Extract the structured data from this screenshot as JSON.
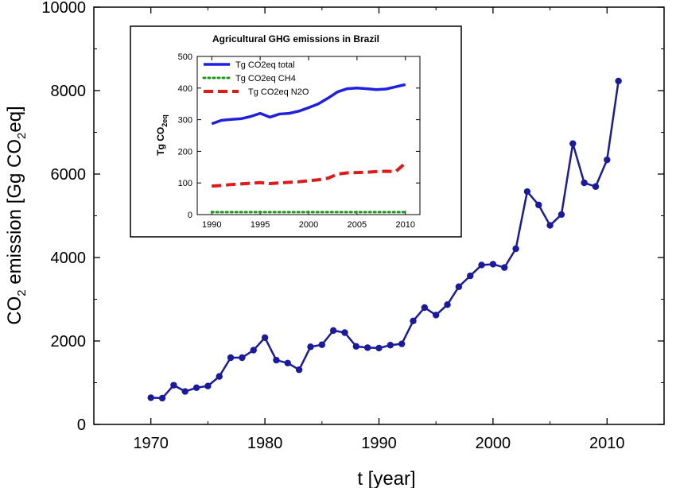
{
  "chart_data": [
    {
      "type": "line",
      "xlabel": "t [year]",
      "ylabel_parts": [
        "CO",
        "2",
        " emission [Gg CO",
        "2",
        "eq]"
      ],
      "xlim": [
        1965,
        2015
      ],
      "ylim": [
        0,
        10000
      ],
      "xticks": [
        1970,
        1980,
        1990,
        2000,
        2010
      ],
      "yticks": [
        0,
        2000,
        4000,
        6000,
        8000,
        10000
      ],
      "grid": false,
      "series": [
        {
          "color": "#1a1aa0",
          "marker": "circle",
          "x": [
            1970,
            1971,
            1972,
            1973,
            1974,
            1975,
            1976,
            1977,
            1978,
            1979,
            1980,
            1981,
            1982,
            1983,
            1984,
            1985,
            1986,
            1987,
            1988,
            1989,
            1990,
            1991,
            1992,
            1993,
            1994,
            1995,
            1996,
            1997,
            1998,
            1999,
            2000,
            2001,
            2002,
            2003,
            2004,
            2005,
            2006,
            2007,
            2008,
            2009,
            2010,
            2011
          ],
          "values": [
            640,
            630,
            940,
            790,
            880,
            920,
            1150,
            1600,
            1600,
            1780,
            2080,
            1540,
            1470,
            1310,
            1860,
            1910,
            2250,
            2200,
            1870,
            1840,
            1830,
            1900,
            1930,
            2480,
            2800,
            2620,
            2870,
            3300,
            3560,
            3820,
            3840,
            3760,
            4210,
            5580,
            5260,
            4770,
            5030,
            6730,
            5790,
            5700,
            6340,
            8230
          ]
        }
      ]
    },
    {
      "type": "line",
      "title": "Agricultural GHG emissions in Brazil",
      "ylabel": "Tg CO",
      "ylabel_sub": "2eq",
      "xlim": [
        1988.5,
        2011.5
      ],
      "ylim": [
        0,
        500
      ],
      "xticks": [
        1990,
        1995,
        2000,
        2005,
        2010
      ],
      "yticks": [
        0,
        100,
        200,
        300,
        400,
        500
      ],
      "legend_position": "top-left",
      "series": [
        {
          "name": "Tg CO2eq total",
          "color": "#1f1fe0",
          "style": "solid",
          "x": [
            1990,
            1991,
            1992,
            1993,
            1994,
            1995,
            1996,
            1997,
            1998,
            1999,
            2000,
            2001,
            2002,
            2003,
            2004,
            2005,
            2006,
            2007,
            2008,
            2009,
            2010
          ],
          "values": [
            287,
            298,
            301,
            303,
            310,
            320,
            308,
            318,
            320,
            327,
            338,
            350,
            368,
            388,
            398,
            400,
            398,
            395,
            397,
            404,
            411
          ]
        },
        {
          "name": "Tg CO2eq CH4",
          "color": "#1a9a1a",
          "style": "dotted",
          "x": [
            1990,
            1991,
            1992,
            1993,
            1994,
            1995,
            1996,
            1997,
            1998,
            1999,
            2000,
            2001,
            2002,
            2003,
            2004,
            2005,
            2006,
            2007,
            2008,
            2009,
            2010
          ],
          "values": [
            8,
            8,
            8,
            8,
            8,
            8,
            8,
            8,
            8,
            8,
            8,
            8,
            8,
            8,
            8,
            8,
            8,
            8,
            8,
            8,
            8
          ]
        },
        {
          "name": "Tg CO2eq N2O",
          "color": "#e01a1a",
          "style": "dashed",
          "x": [
            1990,
            1991,
            1992,
            1993,
            1994,
            1995,
            1996,
            1997,
            1998,
            1999,
            2000,
            2001,
            2002,
            2003,
            2004,
            2005,
            2006,
            2007,
            2008,
            2009,
            2010
          ],
          "values": [
            90,
            92,
            95,
            97,
            99,
            101,
            98,
            100,
            102,
            104,
            107,
            110,
            115,
            128,
            132,
            133,
            134,
            136,
            137,
            136,
            163
          ]
        }
      ]
    }
  ]
}
